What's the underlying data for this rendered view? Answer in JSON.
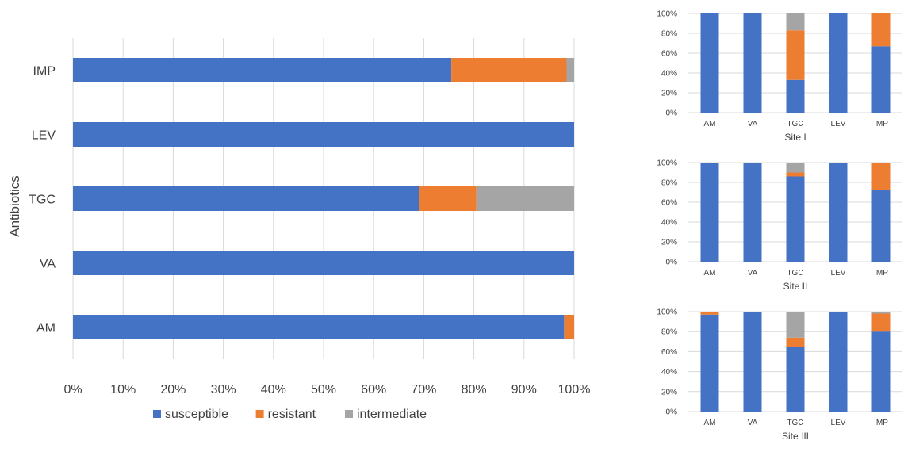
{
  "colors": {
    "susceptible": "#4472c4",
    "resistant": "#ed7d31",
    "intermediate": "#a5a5a5",
    "grid": "#d9d9d9",
    "text": "#404040"
  },
  "chart_data": [
    {
      "type": "bar",
      "orientation": "horizontal",
      "stacked": true,
      "ylabel": "Antibiotics",
      "categories": [
        "AM",
        "VA",
        "TGC",
        "LEV",
        "IMP"
      ],
      "series": [
        {
          "name": "susceptible",
          "values": [
            98,
            100,
            69,
            100,
            75.5
          ]
        },
        {
          "name": "resistant",
          "values": [
            2,
            0,
            11.5,
            0,
            23
          ]
        },
        {
          "name": "intermediate",
          "values": [
            0,
            0,
            19.5,
            0,
            1.5
          ]
        }
      ],
      "xlim": [
        0,
        100
      ],
      "xticks": [
        "0%",
        "10%",
        "20%",
        "30%",
        "40%",
        "50%",
        "60%",
        "70%",
        "80%",
        "90%",
        "100%"
      ],
      "grid": true,
      "legend": "bottom"
    },
    {
      "type": "bar",
      "stacked": true,
      "xlabel": "Site I",
      "categories": [
        "AM",
        "VA",
        "TGC",
        "LEV",
        "IMP"
      ],
      "series": [
        {
          "name": "susceptible",
          "values": [
            100,
            100,
            33,
            100,
            67
          ]
        },
        {
          "name": "resistant",
          "values": [
            0,
            0,
            50,
            0,
            33
          ]
        },
        {
          "name": "intermediate",
          "values": [
            0,
            0,
            17,
            0,
            0
          ]
        }
      ],
      "ylim": [
        0,
        100
      ],
      "yticks": [
        "0%",
        "20%",
        "40%",
        "60%",
        "80%",
        "100%"
      ]
    },
    {
      "type": "bar",
      "stacked": true,
      "xlabel": "Site II",
      "categories": [
        "AM",
        "VA",
        "TGC",
        "LEV",
        "IMP"
      ],
      "series": [
        {
          "name": "susceptible",
          "values": [
            100,
            100,
            86,
            100,
            72
          ]
        },
        {
          "name": "resistant",
          "values": [
            0,
            0,
            4,
            0,
            28
          ]
        },
        {
          "name": "intermediate",
          "values": [
            0,
            0,
            10,
            0,
            0
          ]
        }
      ],
      "ylim": [
        0,
        100
      ],
      "yticks": [
        "0%",
        "20%",
        "40%",
        "60%",
        "80%",
        "100%"
      ]
    },
    {
      "type": "bar",
      "stacked": true,
      "xlabel": "Site III",
      "categories": [
        "AM",
        "VA",
        "TGC",
        "LEV",
        "IMP"
      ],
      "series": [
        {
          "name": "susceptible",
          "values": [
            97,
            100,
            65,
            100,
            80
          ]
        },
        {
          "name": "resistant",
          "values": [
            3,
            0,
            9,
            0,
            18
          ]
        },
        {
          "name": "intermediate",
          "values": [
            0,
            0,
            26,
            0,
            2
          ]
        }
      ],
      "ylim": [
        0,
        100
      ],
      "yticks": [
        "0%",
        "20%",
        "40%",
        "60%",
        "80%",
        "100%"
      ]
    }
  ]
}
